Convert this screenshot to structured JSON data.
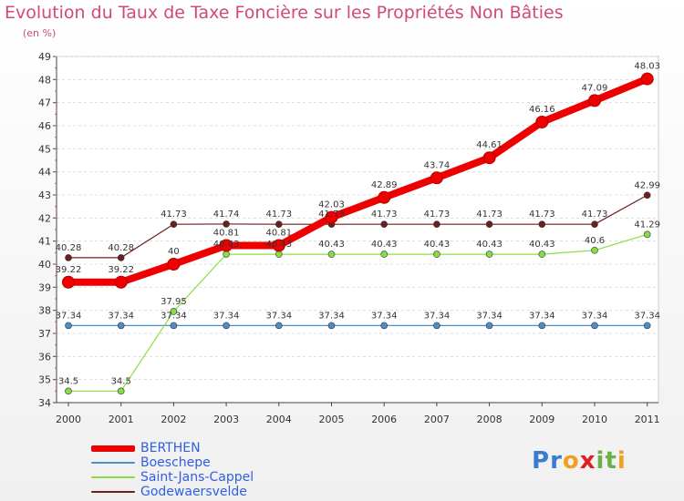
{
  "title": "Evolution du Taux de Taxe Foncière sur les Propriétés Non Bâties",
  "subtitle": "(en %)",
  "logo": {
    "letters": [
      "P",
      "r",
      "o",
      "x",
      "i",
      "t",
      "i"
    ],
    "colors": [
      "#3a7bd5",
      "#3a7bd5",
      "#f0a020",
      "#e02020",
      "#6ab04c",
      "#6ab04c",
      "#f0a020"
    ]
  },
  "chart_data": {
    "type": "line",
    "title": "Evolution du Taux de Taxe Foncière sur les Propriétés Non Bâties",
    "ylabel": "(en %)",
    "ylim": [
      34,
      49
    ],
    "yticks": [
      34,
      35,
      36,
      37,
      38,
      39,
      40,
      41,
      42,
      43,
      44,
      45,
      46,
      47,
      48,
      49
    ],
    "categories": [
      "2000",
      "2001",
      "2002",
      "2003",
      "2004",
      "2005",
      "2006",
      "2007",
      "2008",
      "2009",
      "2010",
      "2011"
    ],
    "legend": "bottom-left",
    "series": [
      {
        "name": "BERTHEN",
        "color": "#ee0000",
        "emphasis": true,
        "values": [
          39.22,
          39.22,
          40,
          40.81,
          40.81,
          42.03,
          42.89,
          43.74,
          44.61,
          46.16,
          47.09,
          48.03
        ],
        "labels": [
          "39.22",
          "39.22",
          "40",
          "40.81",
          "40.81",
          "42.03",
          "42.89",
          "43.74",
          "44.61",
          "46.16",
          "47.09",
          "48.03"
        ]
      },
      {
        "name": "Boeschepe",
        "color": "#4a8fc7",
        "emphasis": false,
        "values": [
          37.34,
          37.34,
          37.34,
          37.34,
          37.34,
          37.34,
          37.34,
          37.34,
          37.34,
          37.34,
          37.34,
          37.34
        ],
        "labels": [
          "37.34",
          "37.34",
          "37.34",
          "37.34",
          "37.34",
          "37.34",
          "37.34",
          "37.34",
          "37.34",
          "37.34",
          "37.34",
          "37.34"
        ]
      },
      {
        "name": "Saint-Jans-Cappel",
        "color": "#88dd44",
        "emphasis": false,
        "values": [
          34.5,
          34.5,
          37.95,
          40.43,
          40.43,
          40.43,
          40.43,
          40.43,
          40.43,
          40.43,
          40.6,
          41.29
        ],
        "labels": [
          "34.5",
          "34.5",
          "37.95",
          "40.43",
          "40.43",
          "40.43",
          "40.43",
          "40.43",
          "40.43",
          "40.43",
          "40.6",
          "41.29"
        ]
      },
      {
        "name": "Godewaersvelde",
        "color": "#6b1f1f",
        "emphasis": false,
        "values": [
          40.28,
          40.28,
          41.73,
          41.74,
          41.73,
          41.73,
          41.73,
          41.73,
          41.73,
          41.73,
          41.73,
          42.99
        ],
        "labels": [
          "40.28",
          "40.28",
          "41.73",
          "41.74",
          "41.73",
          "41.73",
          "41.73",
          "41.73",
          "41.73",
          "41.73",
          "41.73",
          "42.99"
        ]
      }
    ]
  }
}
